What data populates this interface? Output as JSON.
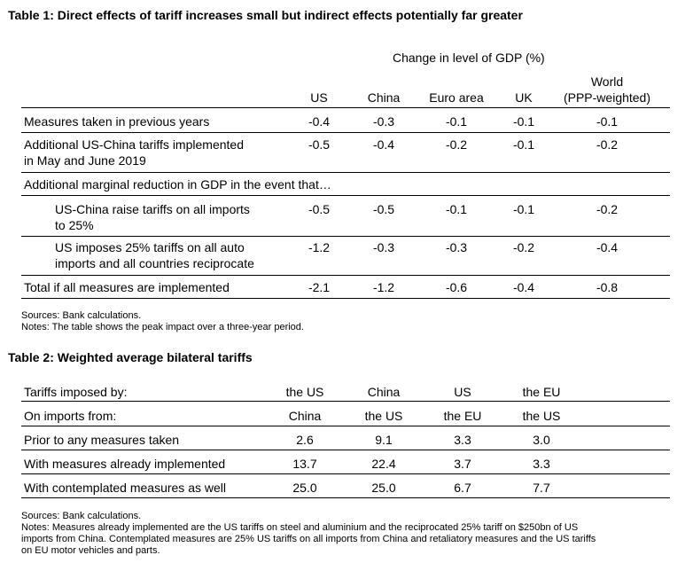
{
  "table1": {
    "title": "Table 1:  Direct effects of tariff increases small but indirect effects potentially far greater",
    "group_header": "Change in level of GDP (%)",
    "columns": [
      "US",
      "China",
      "Euro area",
      "UK",
      "World",
      "(PPP-weighted)"
    ],
    "rows": [
      {
        "label": "Measures taken in previous years",
        "label2": "",
        "values": [
          "-0.4",
          "-0.3",
          "-0.1",
          "-0.1",
          "-0.1"
        ]
      },
      {
        "label": "Additional US-China tariffs implemented",
        "label2": "in May and June 2019",
        "values": [
          "-0.5",
          "-0.4",
          "-0.2",
          "-0.1",
          "-0.2"
        ]
      },
      {
        "label": "Additional marginal reduction in GDP in the event that…",
        "label2": "",
        "values": [
          "",
          "",
          "",
          "",
          ""
        ]
      },
      {
        "label": "US-China raise tariffs on all imports",
        "label2": "to 25%",
        "values": [
          "-0.5",
          "-0.5",
          "-0.1",
          "-0.1",
          "-0.2"
        ]
      },
      {
        "label": "US imposes 25% tariffs on all auto",
        "label2": "imports and all countries reciprocate",
        "values": [
          "-1.2",
          "-0.3",
          "-0.3",
          "-0.2",
          "-0.4"
        ]
      },
      {
        "label": "Total if all measures are implemented",
        "label2": "",
        "values": [
          "-2.1",
          "-1.2",
          "-0.6",
          "-0.4",
          "-0.8"
        ]
      }
    ],
    "sources": "Sources:  Bank calculations.",
    "notes": "Notes:  The table shows the peak impact over a three-year period."
  },
  "table2": {
    "title": "Table 2:  Weighted average bilateral tariffs",
    "header_row1_label": "Tariffs imposed by:",
    "header_row2_label": "On imports from:",
    "imposed_by": [
      "the US",
      "China",
      "US",
      "the EU"
    ],
    "imports_from": [
      "China",
      "the US",
      "the EU",
      "the US"
    ],
    "rows": [
      {
        "label": "Prior to any measures taken",
        "values": [
          "2.6",
          "9.1",
          "3.3",
          "3.0"
        ]
      },
      {
        "label": "With measures already implemented",
        "values": [
          "13.7",
          "22.4",
          "3.7",
          "3.3"
        ]
      },
      {
        "label": "With contemplated measures as well",
        "values": [
          "25.0",
          "25.0",
          "6.7",
          "7.7"
        ]
      }
    ],
    "sources": "Sources:  Bank calculations.",
    "notes_line1": "Notes:  Measures already implemented are the US tariffs on steel and aluminium and the reciprocated 25% tariff on $250bn of US",
    "notes_line2": "imports from China.  Contemplated measures are 25% US tariffs on all imports from China and retaliatory measures and the US tariffs",
    "notes_line3": "on EU motor vehicles and parts."
  }
}
